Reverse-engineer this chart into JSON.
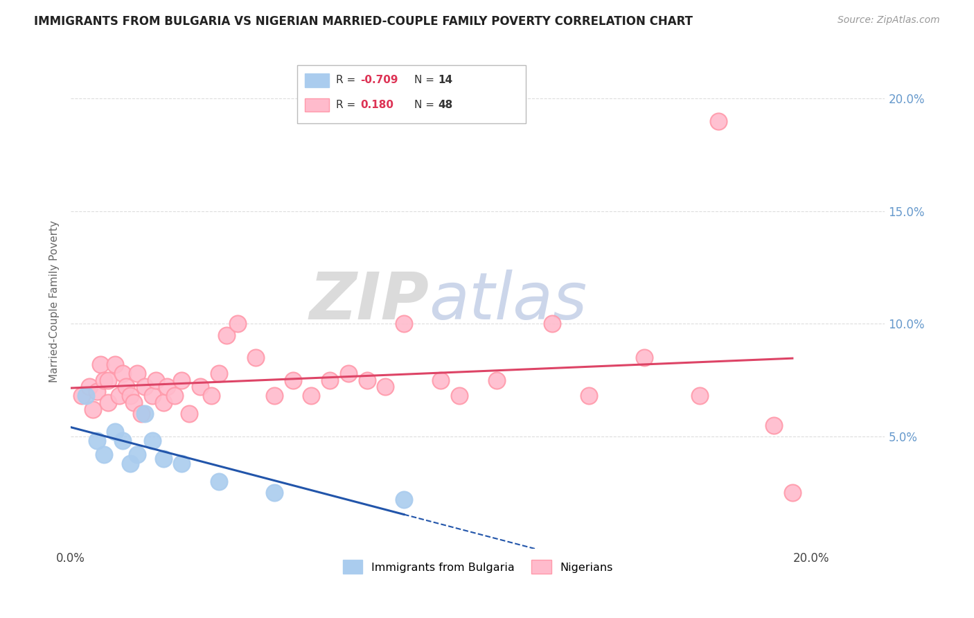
{
  "title": "IMMIGRANTS FROM BULGARIA VS NIGERIAN MARRIED-COUPLE FAMILY POVERTY CORRELATION CHART",
  "source": "Source: ZipAtlas.com",
  "ylabel": "Married-Couple Family Poverty",
  "xlim": [
    0.0,
    0.22
  ],
  "ylim": [
    0.0,
    0.22
  ],
  "xticks": [
    0.0,
    0.05,
    0.1,
    0.15,
    0.2
  ],
  "xticklabels": [
    "0.0%",
    "",
    "",
    "",
    "20.0%"
  ],
  "yticks": [
    0.05,
    0.1,
    0.15,
    0.2
  ],
  "yticklabels_right": [
    "5.0%",
    "10.0%",
    "15.0%",
    "20.0%"
  ],
  "bulgaria_color": "#AACCEE",
  "bulgaria_edge_color": "#AACCEE",
  "nigeria_color": "#FFBBCC",
  "nigeria_edge_color": "#FF99AA",
  "bulgaria_line_color": "#2255AA",
  "nigeria_line_color": "#DD4466",
  "watermark_zip": "ZIP",
  "watermark_atlas": "atlas",
  "bulgaria_x": [
    0.004,
    0.007,
    0.009,
    0.012,
    0.014,
    0.016,
    0.018,
    0.02,
    0.022,
    0.025,
    0.03,
    0.04,
    0.055,
    0.09
  ],
  "bulgaria_y": [
    0.068,
    0.048,
    0.042,
    0.052,
    0.048,
    0.038,
    0.042,
    0.06,
    0.048,
    0.04,
    0.038,
    0.03,
    0.025,
    0.022
  ],
  "nigeria_x": [
    0.003,
    0.005,
    0.006,
    0.007,
    0.008,
    0.009,
    0.01,
    0.01,
    0.012,
    0.013,
    0.014,
    0.015,
    0.016,
    0.017,
    0.018,
    0.019,
    0.02,
    0.022,
    0.023,
    0.025,
    0.026,
    0.028,
    0.03,
    0.032,
    0.035,
    0.038,
    0.04,
    0.042,
    0.045,
    0.05,
    0.055,
    0.06,
    0.065,
    0.07,
    0.075,
    0.08,
    0.085,
    0.09,
    0.1,
    0.105,
    0.115,
    0.13,
    0.14,
    0.155,
    0.17,
    0.175,
    0.19,
    0.195
  ],
  "nigeria_y": [
    0.068,
    0.072,
    0.062,
    0.07,
    0.082,
    0.075,
    0.065,
    0.075,
    0.082,
    0.068,
    0.078,
    0.072,
    0.068,
    0.065,
    0.078,
    0.06,
    0.072,
    0.068,
    0.075,
    0.065,
    0.072,
    0.068,
    0.075,
    0.06,
    0.072,
    0.068,
    0.078,
    0.095,
    0.1,
    0.085,
    0.068,
    0.075,
    0.068,
    0.075,
    0.078,
    0.075,
    0.072,
    0.1,
    0.075,
    0.068,
    0.075,
    0.1,
    0.068,
    0.085,
    0.068,
    0.19,
    0.055,
    0.025
  ],
  "bulgaria_r": "-0.709",
  "bulgaria_n": "14",
  "nigeria_r": "0.180",
  "nigeria_n": "48",
  "bg_color": "#FFFFFF",
  "grid_color": "#DDDDDD",
  "right_tick_color": "#6699CC",
  "axis_label_color": "#666666"
}
